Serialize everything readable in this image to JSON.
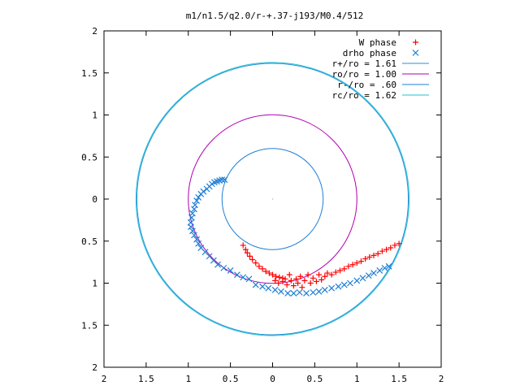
{
  "chart_data": {
    "type": "scatter",
    "title": "m1/n1.5/q2.0/r-+.37-j193/M0.4/512",
    "xlabel": "",
    "ylabel": "",
    "xlim": [
      -2,
      2
    ],
    "ylim": [
      -2,
      2
    ],
    "x_ticks": [
      {
        "value": -2,
        "label": "2"
      },
      {
        "value": -1.5,
        "label": "1.5"
      },
      {
        "value": -1,
        "label": "1"
      },
      {
        "value": -0.5,
        "label": "0.5"
      },
      {
        "value": 0,
        "label": "0"
      },
      {
        "value": 0.5,
        "label": "0.5"
      },
      {
        "value": 1,
        "label": "1"
      },
      {
        "value": 1.5,
        "label": "1.5"
      },
      {
        "value": 2,
        "label": "2"
      }
    ],
    "y_ticks": [
      {
        "value": 2,
        "label": "2"
      },
      {
        "value": 1.5,
        "label": "1.5"
      },
      {
        "value": 1,
        "label": "1"
      },
      {
        "value": 0.5,
        "label": "0.5"
      },
      {
        "value": 0,
        "label": "0"
      },
      {
        "value": -0.5,
        "label": "0.5"
      },
      {
        "value": -1,
        "label": "1"
      },
      {
        "value": -1.5,
        "label": "1.5"
      },
      {
        "value": -2,
        "label": "2"
      }
    ],
    "grid": false,
    "legend_position": "top-right",
    "circles": [
      {
        "name": "r+/ro = 1.61",
        "radius": 1.61,
        "color": "#2b8fd6"
      },
      {
        "name": "ro/ro = 1.00",
        "radius": 1.0,
        "color": "#b000b0"
      },
      {
        "name": "r-/ro = .60",
        "radius": 0.6,
        "color": "#1f7fd6"
      },
      {
        "name": "rc/ro = 1.62",
        "radius": 1.62,
        "color": "#20c0d8"
      }
    ],
    "series": [
      {
        "name": "W phase",
        "marker": "plus",
        "color": "#ff0000",
        "points": [
          [
            -0.35,
            -0.55
          ],
          [
            -0.32,
            -0.6
          ],
          [
            -0.3,
            -0.64
          ],
          [
            -0.27,
            -0.68
          ],
          [
            -0.24,
            -0.72
          ],
          [
            -0.2,
            -0.76
          ],
          [
            -0.16,
            -0.8
          ],
          [
            -0.12,
            -0.83
          ],
          [
            -0.08,
            -0.86
          ],
          [
            -0.04,
            -0.88
          ],
          [
            0.0,
            -0.9
          ],
          [
            0.04,
            -0.92
          ],
          [
            0.08,
            -0.93
          ],
          [
            0.12,
            -0.94
          ],
          [
            0.15,
            -0.95
          ],
          [
            0.03,
            -0.97
          ],
          [
            0.07,
            -1.0
          ],
          [
            0.12,
            -0.98
          ],
          [
            0.17,
            -1.02
          ],
          [
            0.2,
            -0.9
          ],
          [
            0.22,
            -0.97
          ],
          [
            0.25,
            -1.03
          ],
          [
            0.28,
            -0.95
          ],
          [
            0.3,
            -1.0
          ],
          [
            0.33,
            -0.92
          ],
          [
            0.35,
            -1.05
          ],
          [
            0.38,
            -0.97
          ],
          [
            0.42,
            -0.9
          ],
          [
            0.45,
            -1.0
          ],
          [
            0.48,
            -0.94
          ],
          [
            0.52,
            -0.98
          ],
          [
            0.55,
            -0.9
          ],
          [
            0.58,
            -0.96
          ],
          [
            0.62,
            -0.92
          ],
          [
            0.65,
            -0.88
          ],
          [
            0.7,
            -0.9
          ],
          [
            0.75,
            -0.87
          ],
          [
            0.8,
            -0.85
          ],
          [
            0.85,
            -0.83
          ],
          [
            0.9,
            -0.8
          ],
          [
            0.95,
            -0.78
          ],
          [
            1.0,
            -0.76
          ],
          [
            1.05,
            -0.74
          ],
          [
            1.1,
            -0.71
          ],
          [
            1.15,
            -0.69
          ],
          [
            1.2,
            -0.67
          ],
          [
            1.25,
            -0.65
          ],
          [
            1.3,
            -0.62
          ],
          [
            1.35,
            -0.6
          ],
          [
            1.4,
            -0.58
          ],
          [
            1.45,
            -0.55
          ],
          [
            1.5,
            -0.53
          ]
        ]
      },
      {
        "name": "drho phase",
        "marker": "cross",
        "color": "#1f7fd6",
        "points": [
          [
            -0.57,
            0.23
          ],
          [
            -0.6,
            0.23
          ],
          [
            -0.63,
            0.22
          ],
          [
            -0.66,
            0.21
          ],
          [
            -0.69,
            0.2
          ],
          [
            -0.72,
            0.18
          ],
          [
            -0.75,
            0.15
          ],
          [
            -0.78,
            0.12
          ],
          [
            -0.82,
            0.09
          ],
          [
            -0.85,
            0.06
          ],
          [
            -0.88,
            0.02
          ],
          [
            -0.9,
            -0.02
          ],
          [
            -0.92,
            -0.07
          ],
          [
            -0.93,
            -0.12
          ],
          [
            -0.95,
            -0.17
          ],
          [
            -0.96,
            -0.22
          ],
          [
            -0.97,
            -0.28
          ],
          [
            -0.97,
            -0.33
          ],
          [
            -0.95,
            -0.38
          ],
          [
            -0.93,
            -0.43
          ],
          [
            -0.9,
            -0.48
          ],
          [
            -0.88,
            -0.53
          ],
          [
            -0.85,
            -0.58
          ],
          [
            -0.8,
            -0.63
          ],
          [
            -0.75,
            -0.68
          ],
          [
            -0.7,
            -0.73
          ],
          [
            -0.65,
            -0.78
          ],
          [
            -0.58,
            -0.82
          ],
          [
            -0.5,
            -0.85
          ],
          [
            -0.42,
            -0.9
          ],
          [
            -0.35,
            -0.93
          ],
          [
            -0.28,
            -0.95
          ],
          [
            -0.2,
            -1.02
          ],
          [
            -0.12,
            -1.04
          ],
          [
            -0.05,
            -1.06
          ],
          [
            0.03,
            -1.08
          ],
          [
            0.1,
            -1.1
          ],
          [
            0.18,
            -1.12
          ],
          [
            0.25,
            -1.12
          ],
          [
            0.32,
            -1.11
          ],
          [
            0.4,
            -1.12
          ],
          [
            0.48,
            -1.11
          ],
          [
            0.55,
            -1.1
          ],
          [
            0.62,
            -1.08
          ],
          [
            0.7,
            -1.06
          ],
          [
            0.78,
            -1.04
          ],
          [
            0.85,
            -1.02
          ],
          [
            0.92,
            -1.0
          ],
          [
            1.0,
            -0.97
          ],
          [
            1.07,
            -0.94
          ],
          [
            1.14,
            -0.91
          ],
          [
            1.2,
            -0.88
          ],
          [
            1.27,
            -0.85
          ],
          [
            1.33,
            -0.82
          ],
          [
            1.38,
            -0.8
          ]
        ]
      }
    ]
  }
}
